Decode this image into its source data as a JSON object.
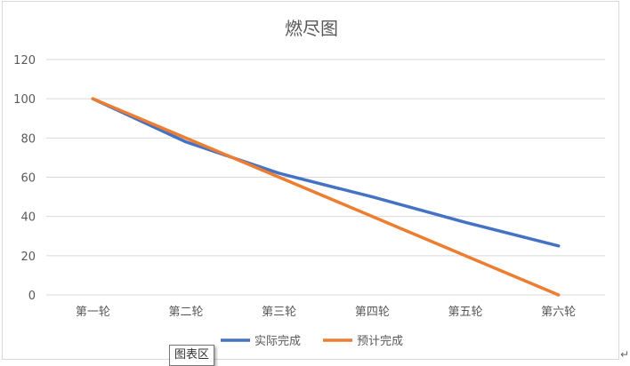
{
  "chart_data": {
    "type": "line",
    "title": "燃尽图",
    "xlabel": "",
    "ylabel": "",
    "categories": [
      "第一轮",
      "第二轮",
      "第三轮",
      "第四轮",
      "第五轮",
      "第六轮"
    ],
    "ylim": [
      0,
      120
    ],
    "yticks": [
      0,
      20,
      40,
      60,
      80,
      100,
      120
    ],
    "grid": true,
    "legend": "bottom",
    "series": [
      {
        "name": "实际完成",
        "values": [
          100,
          78,
          62,
          50,
          37,
          25
        ],
        "color": "#4472c4"
      },
      {
        "name": "预计完成",
        "values": [
          100,
          80,
          60,
          40,
          20,
          0
        ],
        "color": "#ed7d31"
      }
    ]
  },
  "tooltip": {
    "label": "图表区"
  },
  "return_mark": "↵"
}
